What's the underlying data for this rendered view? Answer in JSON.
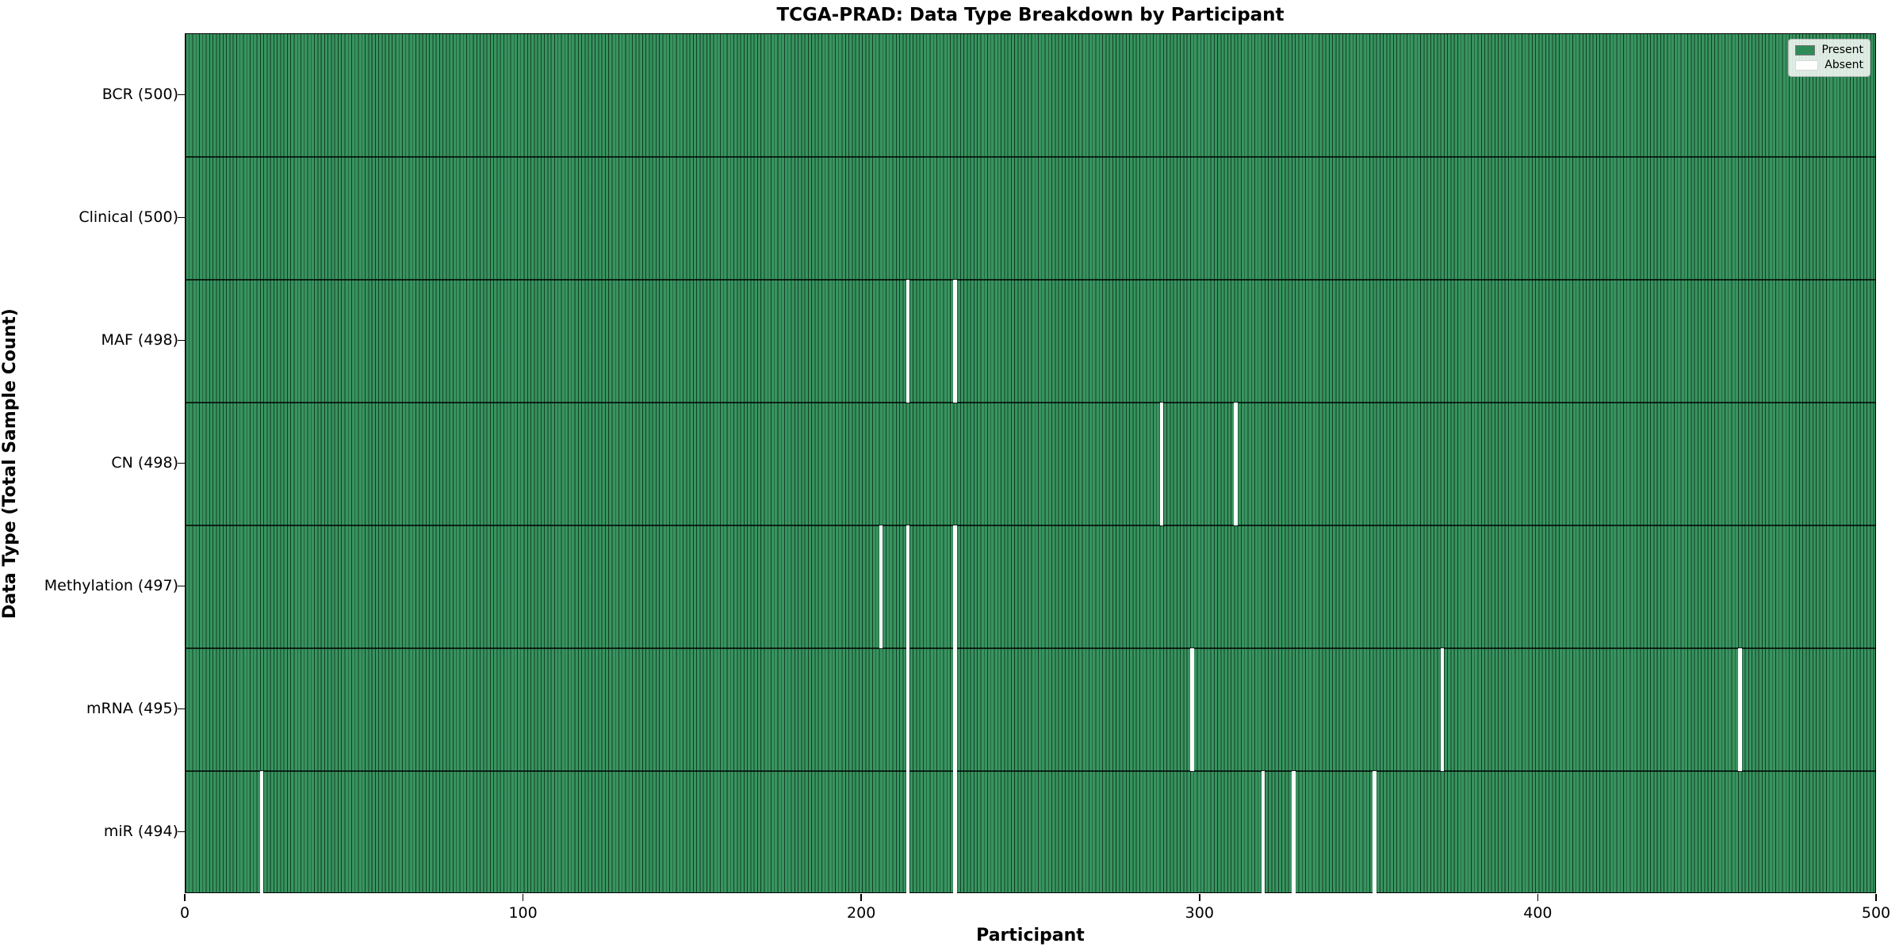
{
  "title": "TCGA-PRAD: Data Type Breakdown by Participant",
  "xlabel": "Participant",
  "ylabel": "Data Type (Total Sample Count)",
  "legend": {
    "present_label": "Present",
    "absent_label": "Absent"
  },
  "colors": {
    "present_fill": "#2e8b57",
    "absent_fill": "#ffffff",
    "bar_edge": "#0a2a1a",
    "legend_border": "#b9bdb9"
  },
  "chart_data": {
    "type": "heatmap",
    "title": "TCGA-PRAD: Data Type Breakdown by Participant",
    "xlabel": "Participant",
    "ylabel": "Data Type (Total Sample Count)",
    "legend": [
      "Present",
      "Absent"
    ],
    "legend_position": "upper right",
    "x_range": [
      0,
      500
    ],
    "x_ticks": [
      0,
      100,
      200,
      300,
      400,
      500
    ],
    "n_participants": 500,
    "rows": [
      {
        "label": "BCR (500)",
        "data_type": "BCR",
        "total": 500,
        "absent_participants": []
      },
      {
        "label": "Clinical (500)",
        "data_type": "Clinical",
        "total": 500,
        "absent_participants": []
      },
      {
        "label": "MAF (498)",
        "data_type": "MAF",
        "total": 498,
        "absent_participants": [
          213,
          227
        ]
      },
      {
        "label": "CN (498)",
        "data_type": "CN",
        "total": 498,
        "absent_participants": [
          288,
          310
        ]
      },
      {
        "label": "Methylation (497)",
        "data_type": "Methylation",
        "total": 497,
        "absent_participants": [
          205,
          213,
          227
        ]
      },
      {
        "label": "mRNA (495)",
        "data_type": "mRNA",
        "total": 495,
        "absent_participants": [
          213,
          227,
          297,
          371,
          459
        ]
      },
      {
        "label": "miR (494)",
        "data_type": "miR",
        "total": 494,
        "absent_participants": [
          22,
          213,
          227,
          318,
          327,
          351
        ]
      }
    ]
  }
}
